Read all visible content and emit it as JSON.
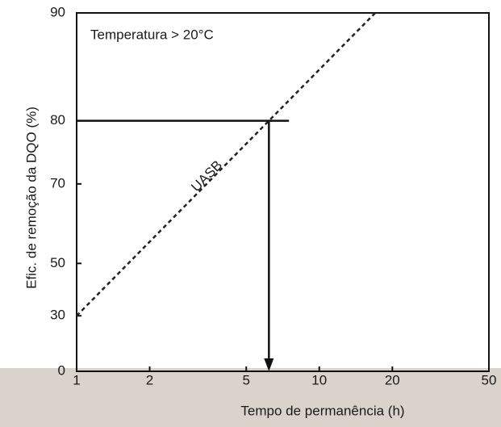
{
  "chart_data": {
    "type": "line",
    "x_label": "Tempo de permanência (h)",
    "y_label": "Efic. de remoção da DQO (%)",
    "annotation": "Temperatura > 20°C",
    "xscale": "log",
    "yscale": "log-complement",
    "series": [
      {
        "name": "UASB",
        "color": "#222222",
        "dashed": true,
        "x": [
          1,
          17
        ],
        "values": [
          30,
          90
        ]
      }
    ],
    "reference_line": {
      "y": 80,
      "x": [
        1,
        7.5
      ]
    },
    "arrow": {
      "x": 6.2,
      "y": [
        80,
        0
      ]
    },
    "xlim": [
      1,
      50
    ],
    "ylim": [
      0,
      90
    ],
    "xticks": [
      1,
      2,
      5,
      10,
      20,
      50
    ],
    "yticks": [
      0,
      30,
      50,
      70,
      80,
      90
    ]
  }
}
